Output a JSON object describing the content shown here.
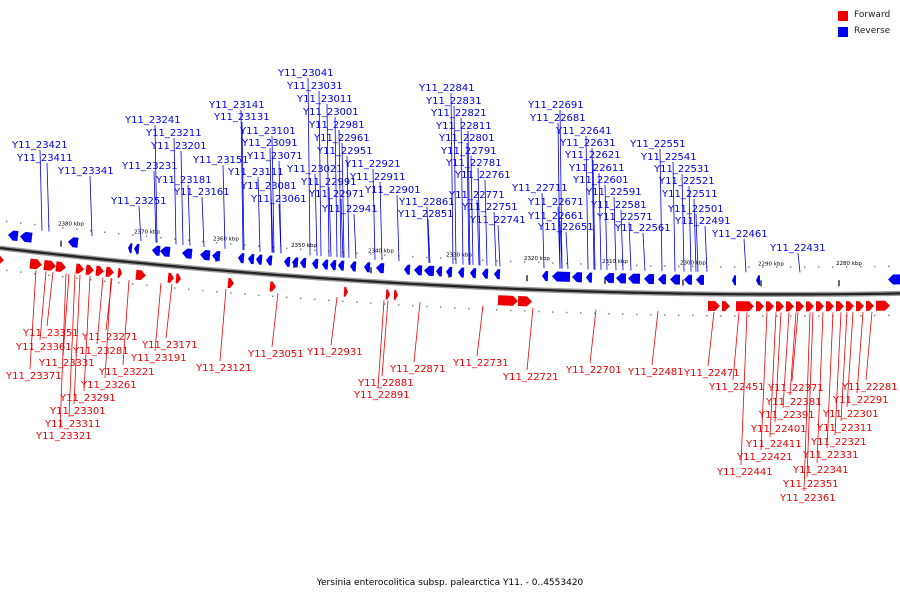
{
  "legend": [
    {
      "label": "Forward",
      "color": "#ee0000"
    },
    {
      "label": "Reverse",
      "color": "#0000ee"
    }
  ],
  "caption": "Yersinia enterocolitica subsp. palearctica Y11. - 0..4553420",
  "axis_labels": [
    "2380 kbp",
    "2370 kbp",
    "2360 kbp",
    "2350 kbp",
    "2340 kbp",
    "2330 kbp",
    "2320 kbp",
    "2310 kbp",
    "2300 kbp",
    "2290 kbp",
    "2280 kbp"
  ],
  "reverse_genes": [
    "Y11_23421",
    "Y11_23411",
    "Y11_23341",
    "Y11_23251",
    "Y11_23241",
    "Y11_23231",
    "Y11_23211",
    "Y11_23201",
    "Y11_23181",
    "Y11_23161",
    "Y11_23151",
    "Y11_23141",
    "Y11_23131",
    "Y11_23111",
    "Y11_23101",
    "Y11_23091",
    "Y11_23081",
    "Y11_23071",
    "Y11_23061",
    "Y11_23041",
    "Y11_23031",
    "Y11_23021",
    "Y11_23011",
    "Y11_23001",
    "Y11_22991",
    "Y11_22981",
    "Y11_22971",
    "Y11_22961",
    "Y11_22951",
    "Y11_22941",
    "Y11_22921",
    "Y11_22911",
    "Y11_22901",
    "Y11_22861",
    "Y11_22851",
    "Y11_22841",
    "Y11_22831",
    "Y11_22821",
    "Y11_22811",
    "Y11_22801",
    "Y11_22791",
    "Y11_22781",
    "Y11_22771",
    "Y11_22761",
    "Y11_22751",
    "Y11_22741",
    "Y11_22711",
    "Y11_22691",
    "Y11_22681",
    "Y11_22671",
    "Y11_22661",
    "Y11_22651",
    "Y11_22641",
    "Y11_22631",
    "Y11_22621",
    "Y11_22611",
    "Y11_22601",
    "Y11_22591",
    "Y11_22581",
    "Y11_22571",
    "Y11_22561",
    "Y11_22551",
    "Y11_22541",
    "Y11_22531",
    "Y11_22521",
    "Y11_22511",
    "Y11_22501",
    "Y11_22491",
    "Y11_22461",
    "Y11_22431"
  ],
  "forward_genes": [
    "Y11_23351",
    "Y11_23361",
    "Y11_23371",
    "Y11_23331",
    "Y11_23271",
    "Y11_23281",
    "Y11_23291",
    "Y11_23261",
    "Y11_23301",
    "Y11_23311",
    "Y11_23321",
    "Y11_23221",
    "Y11_23171",
    "Y11_23191",
    "Y11_23121",
    "Y11_23051",
    "Y11_22931",
    "Y11_22881",
    "Y11_22891",
    "Y11_22871",
    "Y11_22731",
    "Y11_22721",
    "Y11_22701",
    "Y11_22481",
    "Y11_22471",
    "Y11_22451",
    "Y11_22441",
    "Y11_22421",
    "Y11_22411",
    "Y11_22401",
    "Y11_22391",
    "Y11_22381",
    "Y11_22371",
    "Y11_22361",
    "Y11_22351",
    "Y11_22341",
    "Y11_22331",
    "Y11_22321",
    "Y11_22311",
    "Y11_22301",
    "Y11_22291",
    "Y11_22281"
  ]
}
